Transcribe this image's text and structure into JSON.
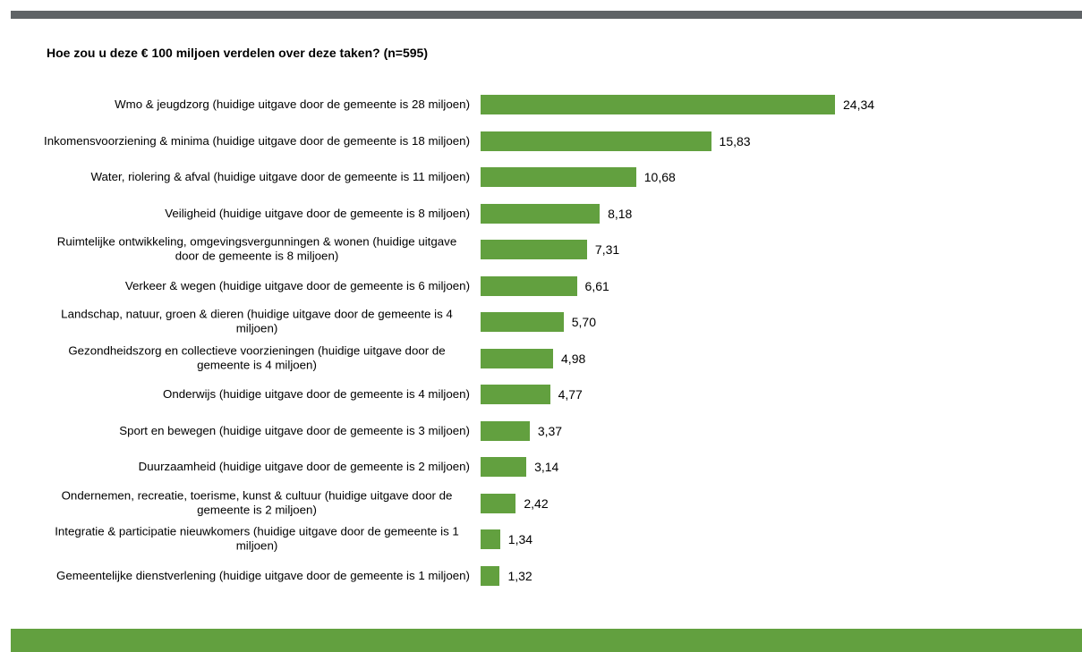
{
  "chart_data": {
    "type": "bar",
    "orientation": "horizontal",
    "title": "Hoe zou u deze € 100 miljoen verdelen over deze taken? (n=595)",
    "color": "#62a03f",
    "categories": [
      "Wmo & jeugdzorg (huidige uitgave door de gemeente is 28 miljoen)",
      "Inkomensvoorziening & minima (huidige uitgave door de gemeente is 18 miljoen)",
      "Water, riolering & afval (huidige uitgave door de gemeente is 11 miljoen)",
      "Veiligheid (huidige uitgave door de gemeente is 8 miljoen)",
      "Ruimtelijke ontwikkeling, omgevingsvergunningen & wonen (huidige uitgave door de gemeente is 8 miljoen)",
      "Verkeer & wegen (huidige uitgave door de gemeente is 6 miljoen)",
      "Landschap, natuur, groen & dieren (huidige uitgave door de gemeente is 4 miljoen)",
      "Gezondheidszorg en collectieve voorzieningen (huidige uitgave door de gemeente is 4 miljoen)",
      "Onderwijs (huidige uitgave door de gemeente is 4 miljoen)",
      "Sport en bewegen (huidige uitgave door de gemeente is 3 miljoen)",
      "Duurzaamheid (huidige uitgave door de gemeente is 2 miljoen)",
      "Ondernemen, recreatie, toerisme, kunst & cultuur (huidige uitgave door de gemeente is 2 miljoen)",
      "Integratie & participatie nieuwkomers (huidige uitgave door de gemeente is 1 miljoen)",
      "Gemeentelijke dienstverlening (huidige uitgave door de gemeente is 1 miljoen)"
    ],
    "values": [
      24.34,
      15.83,
      10.68,
      8.18,
      7.31,
      6.61,
      5.7,
      4.98,
      4.77,
      3.37,
      3.14,
      2.42,
      1.34,
      1.32
    ],
    "value_labels": [
      "24,34",
      "15,83",
      "10,68",
      "8,18",
      "7,31",
      "6,61",
      "5,70",
      "4,98",
      "4,77",
      "3,37",
      "3,14",
      "2,42",
      "1,34",
      "1,32"
    ]
  }
}
